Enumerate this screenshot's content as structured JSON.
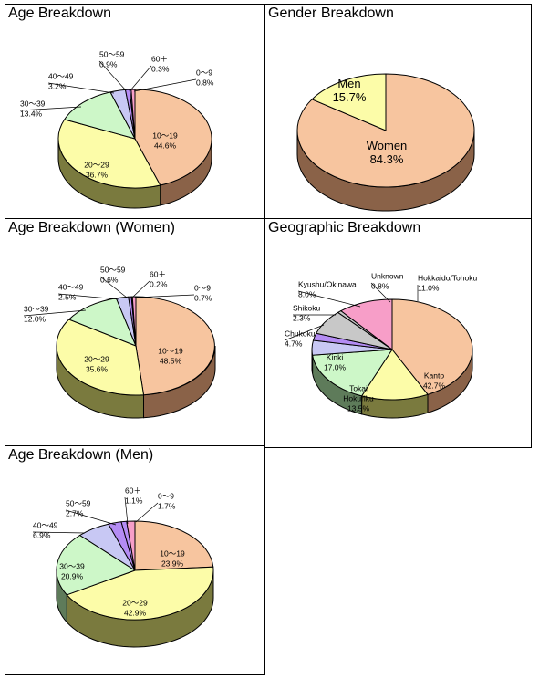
{
  "colors": {
    "peach": "#f7c59f",
    "peach_side": "#8a6248",
    "yellow": "#fcfca8",
    "yellow_side": "#7a7a3e",
    "green": "#cdf7c8",
    "green_side": "#5e7b5a",
    "lavender": "#c8c8f4",
    "lavender_side": "#5a5a80",
    "violet": "#b48cf4",
    "violet_side": "#5e4a80",
    "pink": "#f79ec8",
    "pink_side": "#8a4e66",
    "gray": "#c8c8c8",
    "gray_side": "#707070"
  },
  "chart_data": [
    {
      "type": "pie",
      "title": "Age Breakdown",
      "slices": [
        {
          "name": "10～19",
          "label": "10～19",
          "pct_label": "44.6%",
          "value": 44.6,
          "color": "peach"
        },
        {
          "name": "20～29",
          "label": "20～29",
          "pct_label": "36.7%",
          "value": 36.7,
          "color": "yellow"
        },
        {
          "name": "30～39",
          "label": "30～39",
          "pct_label": "13.4%",
          "value": 13.4,
          "color": "green"
        },
        {
          "name": "40～49",
          "label": "40～49",
          "pct_label": "3.2%",
          "value": 3.2,
          "color": "lavender"
        },
        {
          "name": "50～59",
          "label": "50～59",
          "pct_label": "0.9%",
          "value": 0.9,
          "color": "violet"
        },
        {
          "name": "60+",
          "label": "60＋",
          "pct_label": "0.3%",
          "value": 0.3,
          "color": "violet"
        },
        {
          "name": "0～9",
          "label": "0～9",
          "pct_label": "0.8%",
          "value": 0.8,
          "color": "pink"
        }
      ]
    },
    {
      "type": "pie",
      "title": "Gender Breakdown",
      "slices": [
        {
          "name": "Women",
          "label": "Women",
          "pct_label": "84.3%",
          "value": 84.3,
          "color": "peach"
        },
        {
          "name": "Men",
          "label": "Men",
          "pct_label": "15.7%",
          "value": 15.7,
          "color": "yellow"
        }
      ]
    },
    {
      "type": "pie",
      "title": "Age Breakdown (Women)",
      "slices": [
        {
          "name": "10～19",
          "label": "10～19",
          "pct_label": "48.5%",
          "value": 48.5,
          "color": "peach"
        },
        {
          "name": "20～29",
          "label": "20～29",
          "pct_label": "35.6%",
          "value": 35.6,
          "color": "yellow"
        },
        {
          "name": "30～39",
          "label": "30～39",
          "pct_label": "12.0%",
          "value": 12.0,
          "color": "green"
        },
        {
          "name": "40～49",
          "label": "40～49",
          "pct_label": "2.5%",
          "value": 2.5,
          "color": "lavender"
        },
        {
          "name": "50～59",
          "label": "50～59",
          "pct_label": "0.6%",
          "value": 0.6,
          "color": "violet"
        },
        {
          "name": "60+",
          "label": "60＋",
          "pct_label": "0.2%",
          "value": 0.2,
          "color": "violet"
        },
        {
          "name": "0～9",
          "label": "0～9",
          "pct_label": "0.7%",
          "value": 0.7,
          "color": "pink"
        }
      ]
    },
    {
      "type": "pie",
      "title": "Geographic Breakdown",
      "slices": [
        {
          "name": "Kanto",
          "label": "Kanto",
          "pct_label": "42.7%",
          "value": 42.7,
          "color": "peach"
        },
        {
          "name": "Tokai Hokuriku",
          "label": "Tokai\nHokuriku",
          "pct_label": "13.5%",
          "value": 13.5,
          "color": "yellow"
        },
        {
          "name": "Kinki",
          "label": "Kinki",
          "pct_label": "17.0%",
          "value": 17.0,
          "color": "green"
        },
        {
          "name": "Chukoku",
          "label": "Chukoku",
          "pct_label": "4.7%",
          "value": 4.7,
          "color": "lavender"
        },
        {
          "name": "Shikoku",
          "label": "Shikoku",
          "pct_label": "2.3%",
          "value": 2.3,
          "color": "violet"
        },
        {
          "name": "Kyushu/Okinawa",
          "label": "Kyushu/Okinawa",
          "pct_label": "8.0%",
          "value": 8.0,
          "color": "gray"
        },
        {
          "name": "Unknown",
          "label": "Unknown",
          "pct_label": "0.8%",
          "value": 0.8,
          "color": "gray"
        },
        {
          "name": "Hokkaido/Tohoku",
          "label": "Hokkaido/Tohoku",
          "pct_label": "11.0%",
          "value": 11.0,
          "color": "pink"
        }
      ]
    },
    {
      "type": "pie",
      "title": "Age Breakdown (Men)",
      "slices": [
        {
          "name": "10～19",
          "label": "10～19",
          "pct_label": "23.9%",
          "value": 23.9,
          "color": "peach"
        },
        {
          "name": "20～29",
          "label": "20～29",
          "pct_label": "42.9%",
          "value": 42.9,
          "color": "yellow"
        },
        {
          "name": "30～39",
          "label": "30～39",
          "pct_label": "20.9%",
          "value": 20.9,
          "color": "green"
        },
        {
          "name": "40～49",
          "label": "40～49",
          "pct_label": "6.9%",
          "value": 6.9,
          "color": "lavender"
        },
        {
          "name": "50～59",
          "label": "50～59",
          "pct_label": "2.7%",
          "value": 2.7,
          "color": "violet"
        },
        {
          "name": "60+",
          "label": "60＋",
          "pct_label": "1.1%",
          "value": 1.1,
          "color": "violet"
        },
        {
          "name": "0～9",
          "label": "0～9",
          "pct_label": "1.7%",
          "value": 1.7,
          "color": "pink"
        }
      ]
    }
  ]
}
